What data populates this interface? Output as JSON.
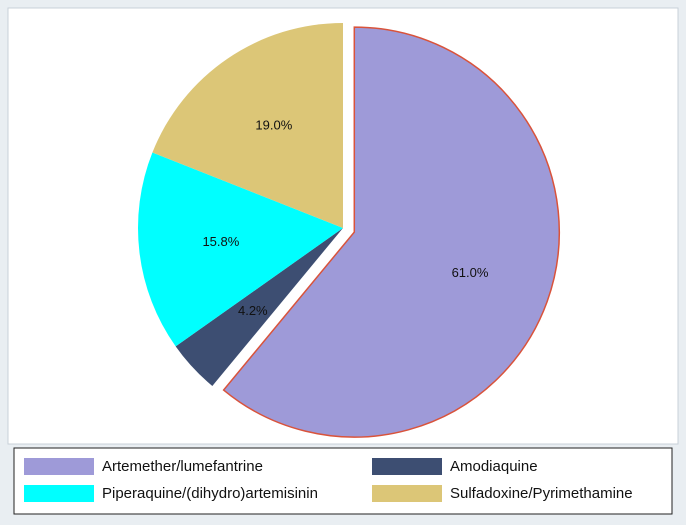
{
  "chart_data": {
    "type": "pie",
    "categories": [
      "Artemether/lumefantrine",
      "Amodiaquine",
      "Piperaquine/(dihydro)artemisinin",
      "Sulfadoxine/Pyrimethamine"
    ],
    "values": [
      61.0,
      4.2,
      15.8,
      19.0
    ],
    "value_labels": [
      "61.0%",
      "4.2%",
      "15.8%",
      "19.0%"
    ],
    "colors": [
      "#9e9ad8",
      "#3d4e72",
      "#00ffff",
      "#dcc677"
    ],
    "exploded": [
      true,
      false,
      false,
      false
    ],
    "legend": "bottom"
  }
}
